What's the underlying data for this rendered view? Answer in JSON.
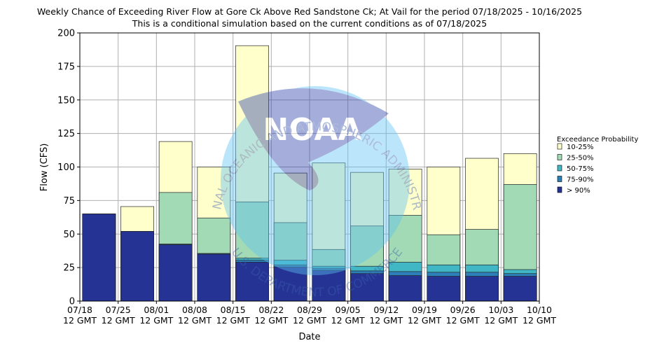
{
  "chart_data": {
    "type": "bar",
    "title": "Weekly Chance of Exceeding River Flow at Gore Ck Above Red Sandstone Ck; At Vail for the period 07/18/2025 - 10/16/2025",
    "subtitle": "This is a conditional simulation based on the current conditions as of 07/18/2025",
    "xlabel": "Date",
    "ylabel": "Flow (CFS)",
    "ylim": [
      0,
      200
    ],
    "yticks": [
      "0",
      "25",
      "50",
      "75",
      "100",
      "125",
      "150",
      "175",
      "200"
    ],
    "xticks": [
      "07/18\n12 GMT",
      "07/25\n12 GMT",
      "08/01\n12 GMT",
      "08/08\n12 GMT",
      "08/15\n12 GMT",
      "08/22\n12 GMT",
      "08/29\n12 GMT",
      "09/05\n12 GMT",
      "09/12\n12 GMT",
      "09/19\n12 GMT",
      "09/26\n12 GMT",
      "10/03\n12 GMT",
      "10/10\n12 GMT"
    ],
    "grid": true,
    "legend_title": "Exceedance Probability",
    "legend_position": "right",
    "colors": {
      "10-25%": "#ffffcc",
      "25-50%": "#a1dab4",
      "50-75%": "#41b6c4",
      "75-90%": "#2c7fb8",
      "> 90%": "#253494"
    },
    "series": [
      {
        "name": "> 90%",
        "values": [
          65,
          52,
          42,
          35,
          29,
          25.5,
          23,
          20.5,
          19,
          18.5,
          18.5,
          18.5,
          18.5
        ]
      },
      {
        "name": "75-90%",
        "values": [
          65,
          52,
          42.5,
          35.5,
          30.5,
          27,
          24.5,
          22.5,
          22,
          21.5,
          21.5,
          20.5,
          20.5
        ]
      },
      {
        "name": "50-75%",
        "values": [
          65,
          52,
          42.5,
          35.5,
          32,
          30.5,
          26,
          26,
          29,
          27,
          27,
          23.5,
          23.5
        ]
      },
      {
        "name": "25-50%",
        "values": [
          65,
          52,
          81,
          62,
          74,
          58.5,
          38.5,
          56,
          64,
          49.5,
          53.5,
          87,
          87
        ]
      },
      {
        "name": "10-25%",
        "values": [
          65,
          70.5,
          119,
          100,
          190.5,
          95.5,
          103,
          96,
          98.5,
          100,
          106.5,
          110,
          110
        ]
      }
    ]
  },
  "watermark": {
    "logo_text": "NOAA",
    "arc_top": "NATIONAL OCEANIC AND ATMOSPHERIC ADMINISTRATION",
    "arc_bottom": "U.S. DEPARTMENT OF COMMERCE"
  }
}
